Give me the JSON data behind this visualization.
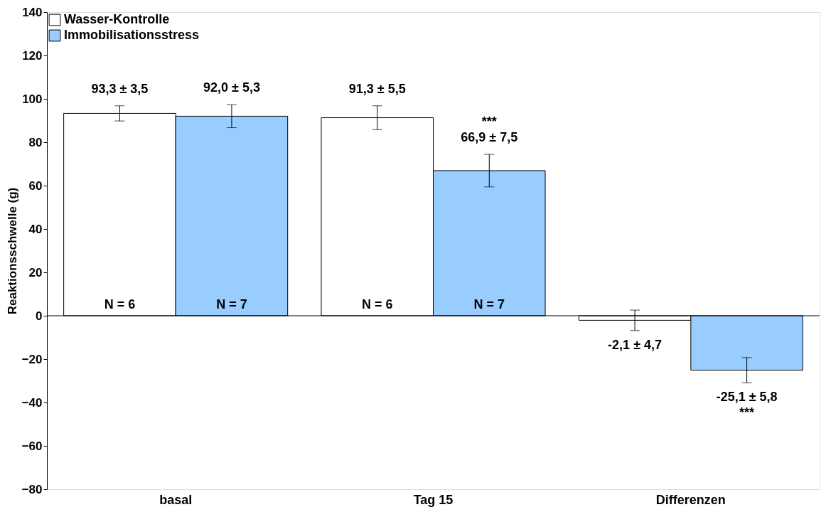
{
  "chart_data": {
    "type": "bar",
    "ylabel": "Reaktionsschwelle (g)",
    "categories": [
      "basal",
      "Tag 15",
      "Differenzen"
    ],
    "series": [
      {
        "name": "Wasser-Kontrolle",
        "color": "#ffffff",
        "values": [
          93.3,
          91.3,
          -2.1
        ],
        "errors": [
          3.5,
          5.5,
          4.7
        ],
        "value_labels": [
          "93,3 ± 3,5",
          "91,3 ± 5,5",
          "-2,1 ± 4,7"
        ]
      },
      {
        "name": "Immobilisationsstress",
        "color": "#99ccff",
        "values": [
          92.0,
          66.9,
          -25.1
        ],
        "errors": [
          5.3,
          7.5,
          5.8
        ],
        "value_labels": [
          "92,0 ± 5,3",
          "***\n66,9 ± 7,5",
          "-25,1 ± 5,8\n***"
        ]
      }
    ],
    "annotations": [
      "N = 6",
      "N = 7",
      "N = 6",
      "N = 7"
    ],
    "ref_lines": [
      {
        "axis": "y",
        "value": 0
      }
    ],
    "ylim": [
      -80,
      140
    ],
    "yticks": [
      -80,
      -60,
      -40,
      -20,
      0,
      20,
      40,
      60,
      80,
      100,
      120,
      140
    ],
    "grid": false,
    "legend": "top left"
  }
}
